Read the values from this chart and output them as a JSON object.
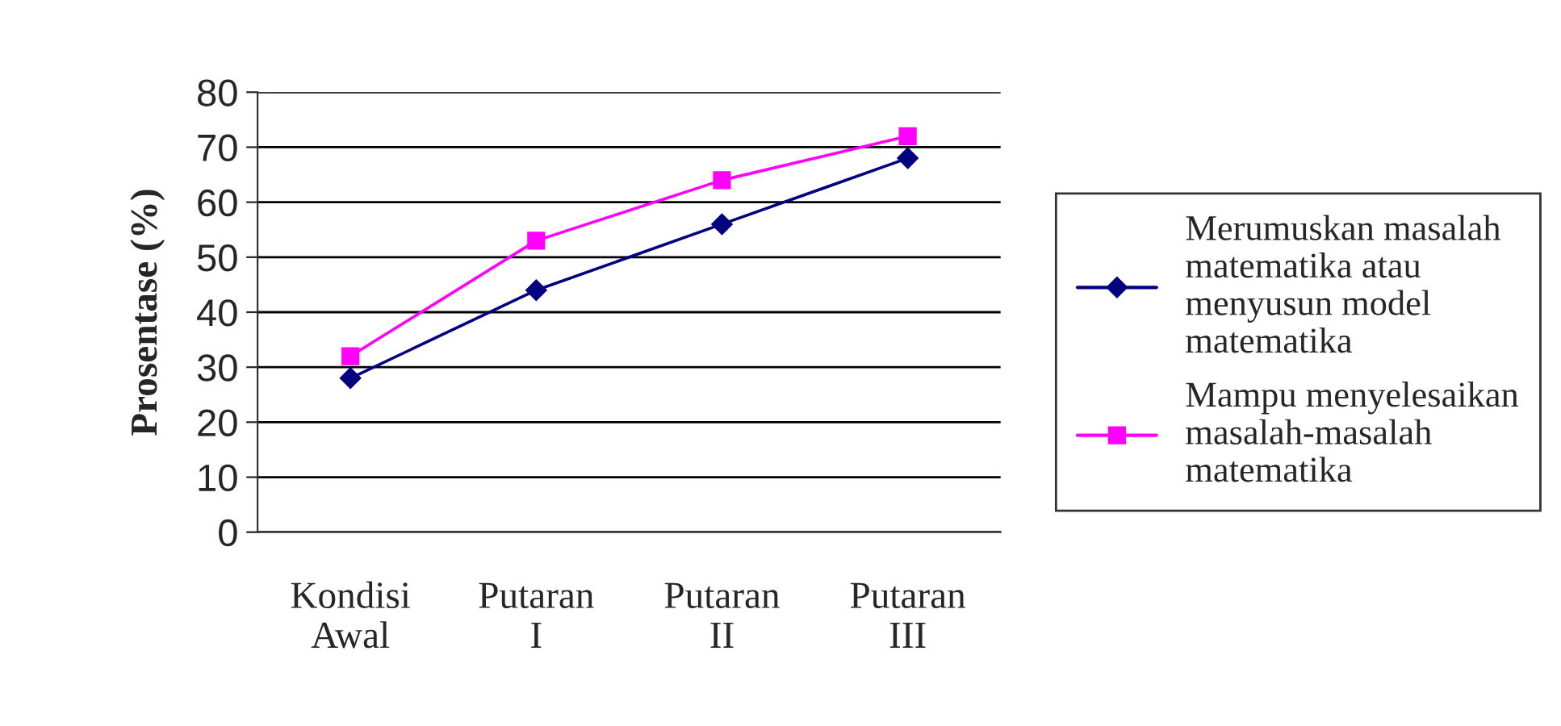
{
  "chart_data": {
    "type": "line",
    "ylabel": "Prosentase (%)",
    "categories": [
      "Kondisi Awal",
      "Putaran I",
      "Putaran II",
      "Putaran III"
    ],
    "series": [
      {
        "name": "Merumuskan masalah matematika atau menyusun model matematika",
        "color": "#000080",
        "marker": "diamond",
        "values": [
          28,
          44,
          56,
          68
        ]
      },
      {
        "name": "Mampu menyelesaikan masalah-masalah matematika",
        "color": "#ff00ff",
        "marker": "square",
        "values": [
          32,
          53,
          64,
          72
        ]
      }
    ],
    "ylim": [
      0,
      80
    ],
    "yticks": [
      0,
      10,
      20,
      30,
      40,
      50,
      60,
      70,
      80
    ],
    "grid": "y",
    "legend": "right",
    "line_style": "solid"
  }
}
